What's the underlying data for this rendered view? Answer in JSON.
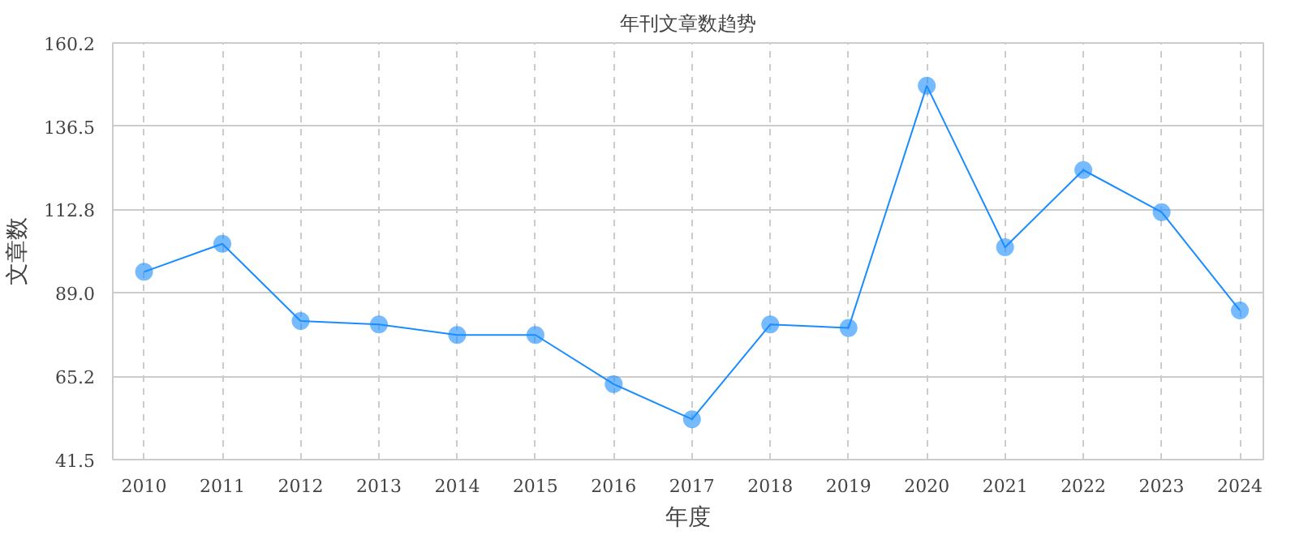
{
  "chart_data": {
    "type": "line",
    "title": "年刊文章数趋势",
    "xlabel": "年度",
    "ylabel": "文章数",
    "categories": [
      "2010",
      "2011",
      "2012",
      "2013",
      "2014",
      "2015",
      "2016",
      "2017",
      "2018",
      "2019",
      "2020",
      "2021",
      "2022",
      "2023",
      "2024"
    ],
    "series": [
      {
        "color": "#1a8cff",
        "values": [
          95,
          103,
          81,
          80,
          77,
          77,
          63,
          53,
          80,
          79,
          148,
          102,
          124,
          112,
          84
        ]
      }
    ],
    "ylim": [
      41.5,
      160.2
    ],
    "yticks": [
      41.5,
      65.2,
      {
        "value": 89,
        "label": "89.0"
      },
      112.8,
      136.5,
      160.2
    ],
    "grid": true,
    "marker": "circle",
    "line_style": "solid"
  }
}
